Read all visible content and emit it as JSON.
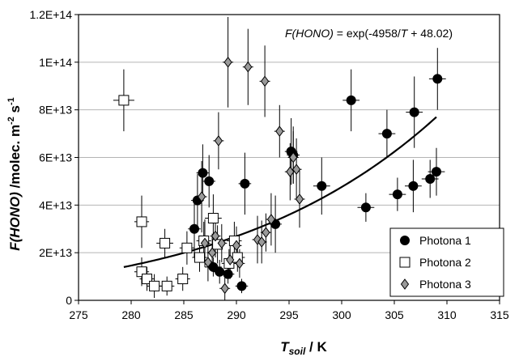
{
  "chart_data": {
    "type": "scatter",
    "xlabel_main": "T",
    "xlabel_sub": "soil",
    "xlabel_unit": " / K",
    "ylabel_main": "F(HONO)",
    "ylabel_unit_text": " /molec. m",
    "ylabel_exp1": "-2",
    "ylabel_mid": " s",
    "ylabel_exp2": "-1",
    "equation_lhs": "F(HONO)",
    "equation_rhs_pre": " = exp(-4958/",
    "equation_var": "T",
    "equation_rhs_post": " + 48.02)",
    "xlim": [
      275,
      315
    ],
    "ylim": [
      0,
      120000000000000.0
    ],
    "xticks": [
      275,
      280,
      285,
      290,
      295,
      300,
      305,
      310,
      315
    ],
    "yticks": [
      0,
      20000000000000.0,
      40000000000000.0,
      60000000000000.0,
      80000000000000.0,
      100000000000000.0,
      120000000000000.0
    ],
    "ytick_labels": [
      "0",
      "2E+13",
      "4E+13",
      "6E+13",
      "8E+13",
      "1E+14",
      "1.2E+14"
    ],
    "grid_y": true,
    "legend_position": "bottom-right",
    "fit_curve": {
      "A": -4958,
      "B": 48.02,
      "x_range": [
        279.3,
        309.0
      ]
    },
    "series": [
      {
        "name": "Photona 1",
        "marker": "circle",
        "fill": "#000000",
        "points": [
          {
            "x": 286.0,
            "y": 30000000000000.0,
            "yerr": 12000000000000.0,
            "xerr": 0.6
          },
          {
            "x": 286.3,
            "y": 42000000000000.0,
            "yerr": 11000000000000.0,
            "xerr": 0.6
          },
          {
            "x": 286.8,
            "y": 53500000000000.0,
            "yerr": 12000000000000.0,
            "xerr": 0.6
          },
          {
            "x": 287.4,
            "y": 50000000000000.0,
            "yerr": 11000000000000.0,
            "xerr": 0.6
          },
          {
            "x": 287.8,
            "y": 14000000000000.0,
            "yerr": 4000000000000.0,
            "xerr": 0.8
          },
          {
            "x": 288.4,
            "y": 12000000000000.0,
            "yerr": 5000000000000.0,
            "xerr": 0.6
          },
          {
            "x": 289.2,
            "y": 11000000000000.0,
            "yerr": 4000000000000.0,
            "xerr": 0.6
          },
          {
            "x": 290.5,
            "y": 6000000000000.0,
            "yerr": 3000000000000.0,
            "xerr": 0.6
          },
          {
            "x": 290.8,
            "y": 49000000000000.0,
            "yerr": 13000000000000.0,
            "xerr": 0.6
          },
          {
            "x": 293.7,
            "y": 32000000000000.0,
            "yerr": 12000000000000.0,
            "xerr": 0.6
          },
          {
            "x": 295.2,
            "y": 62500000000000.0,
            "yerr": 14000000000000.0,
            "xerr": 0.6
          },
          {
            "x": 295.4,
            "y": 61000000000000.0,
            "yerr": 12000000000000.0,
            "xerr": 0.6
          },
          {
            "x": 298.1,
            "y": 48000000000000.0,
            "yerr": 12000000000000.0,
            "xerr": 0.8
          },
          {
            "x": 300.9,
            "y": 84000000000000.0,
            "yerr": 13000000000000.0,
            "xerr": 0.8
          },
          {
            "x": 302.3,
            "y": 39000000000000.0,
            "yerr": 6000000000000.0,
            "xerr": 0.8
          },
          {
            "x": 304.3,
            "y": 70000000000000.0,
            "yerr": 10000000000000.0,
            "xerr": 0.8
          },
          {
            "x": 305.3,
            "y": 44500000000000.0,
            "yerr": 7000000000000.0,
            "xerr": 0.8
          },
          {
            "x": 306.8,
            "y": 48000000000000.0,
            "yerr": 11000000000000.0,
            "xerr": 0.8
          },
          {
            "x": 306.9,
            "y": 79000000000000.0,
            "yerr": 15000000000000.0,
            "xerr": 0.8
          },
          {
            "x": 308.4,
            "y": 51000000000000.0,
            "yerr": 8000000000000.0,
            "xerr": 0.8
          },
          {
            "x": 309.0,
            "y": 54000000000000.0,
            "yerr": 10000000000000.0,
            "xerr": 0.8
          },
          {
            "x": 309.1,
            "y": 93000000000000.0,
            "yerr": 13000000000000.0,
            "xerr": 0.8
          }
        ]
      },
      {
        "name": "Photona 2",
        "marker": "square",
        "fill": "#ffffff",
        "points": [
          {
            "x": 279.3,
            "y": 84000000000000.0,
            "yerr": 13000000000000.0,
            "xerr": 1.0
          },
          {
            "x": 281.0,
            "y": 33000000000000.0,
            "yerr": 11000000000000.0,
            "xerr": 0.7
          },
          {
            "x": 281.0,
            "y": 12000000000000.0,
            "yerr": 6000000000000.0,
            "xerr": 0.7
          },
          {
            "x": 281.5,
            "y": 9000000000000.0,
            "yerr": 5000000000000.0,
            "xerr": 0.7
          },
          {
            "x": 282.2,
            "y": 6000000000000.0,
            "yerr": 5000000000000.0,
            "xerr": 0.7
          },
          {
            "x": 283.2,
            "y": 24000000000000.0,
            "yerr": 6000000000000.0,
            "xerr": 0.8
          },
          {
            "x": 283.4,
            "y": 6000000000000.0,
            "yerr": 4000000000000.0,
            "xerr": 0.7
          },
          {
            "x": 284.9,
            "y": 9000000000000.0,
            "yerr": 5000000000000.0,
            "xerr": 0.7
          },
          {
            "x": 285.3,
            "y": 22000000000000.0,
            "yerr": 7000000000000.0,
            "xerr": 0.7
          },
          {
            "x": 286.5,
            "y": 18000000000000.0,
            "yerr": 6000000000000.0,
            "xerr": 0.7
          },
          {
            "x": 286.9,
            "y": 25000000000000.0,
            "yerr": 8000000000000.0,
            "xerr": 0.7
          },
          {
            "x": 287.8,
            "y": 34500000000000.0,
            "yerr": 10000000000000.0,
            "xerr": 0.8
          },
          {
            "x": 288.2,
            "y": 23500000000000.0,
            "yerr": 8000000000000.0,
            "xerr": 0.7
          },
          {
            "x": 289.3,
            "y": 15500000000000.0,
            "yerr": 6000000000000.0,
            "xerr": 0.7
          },
          {
            "x": 289.8,
            "y": 25000000000000.0,
            "yerr": 8000000000000.0,
            "xerr": 0.7
          },
          {
            "x": 290.1,
            "y": 18000000000000.0,
            "yerr": 6000000000000.0,
            "xerr": 0.7
          }
        ]
      },
      {
        "name": "Photona 3",
        "marker": "diamond",
        "fill": "#9a9a9a",
        "points": [
          {
            "x": 286.7,
            "y": 43500000000000.0,
            "yerr": 15000000000000.0,
            "xerr": 0.5
          },
          {
            "x": 287.0,
            "y": 24000000000000.0,
            "yerr": 10000000000000.0,
            "xerr": 0.5
          },
          {
            "x": 287.3,
            "y": 16000000000000.0,
            "yerr": 8000000000000.0,
            "xerr": 0.5
          },
          {
            "x": 287.7,
            "y": 20000000000000.0,
            "yerr": 8000000000000.0,
            "xerr": 0.5
          },
          {
            "x": 288.0,
            "y": 27000000000000.0,
            "yerr": 9000000000000.0,
            "xerr": 0.5
          },
          {
            "x": 288.3,
            "y": 67000000000000.0,
            "yerr": 12000000000000.0,
            "xerr": 0.5
          },
          {
            "x": 288.6,
            "y": 24000000000000.0,
            "yerr": 8000000000000.0,
            "xerr": 0.5
          },
          {
            "x": 288.9,
            "y": 5000000000000.0,
            "yerr": 6000000000000.0,
            "xerr": 0.5
          },
          {
            "x": 289.2,
            "y": 100000000000000.0,
            "yerr": 19000000000000.0,
            "xerr": 0.5
          },
          {
            "x": 289.4,
            "y": 17000000000000.0,
            "yerr": 8000000000000.0,
            "xerr": 0.5
          },
          {
            "x": 290.0,
            "y": 23000000000000.0,
            "yerr": 8000000000000.0,
            "xerr": 0.5
          },
          {
            "x": 290.3,
            "y": 15500000000000.0,
            "yerr": 6000000000000.0,
            "xerr": 0.5
          },
          {
            "x": 291.1,
            "y": 98000000000000.0,
            "yerr": 16000000000000.0,
            "xerr": 0.5
          },
          {
            "x": 292.0,
            "y": 25500000000000.0,
            "yerr": 10000000000000.0,
            "xerr": 0.5
          },
          {
            "x": 292.4,
            "y": 24500000000000.0,
            "yerr": 9000000000000.0,
            "xerr": 0.5
          },
          {
            "x": 292.7,
            "y": 92000000000000.0,
            "yerr": 15000000000000.0,
            "xerr": 0.5
          },
          {
            "x": 292.8,
            "y": 28500000000000.0,
            "yerr": 8000000000000.0,
            "xerr": 0.5
          },
          {
            "x": 293.3,
            "y": 34000000000000.0,
            "yerr": 11000000000000.0,
            "xerr": 0.5
          },
          {
            "x": 294.1,
            "y": 71000000000000.0,
            "yerr": 11000000000000.0,
            "xerr": 0.5
          },
          {
            "x": 295.1,
            "y": 54000000000000.0,
            "yerr": 12000000000000.0,
            "xerr": 0.5
          },
          {
            "x": 295.4,
            "y": 60000000000000.0,
            "yerr": 11000000000000.0,
            "xerr": 0.5
          },
          {
            "x": 295.7,
            "y": 55000000000000.0,
            "yerr": 13000000000000.0,
            "xerr": 0.5
          },
          {
            "x": 296.0,
            "y": 42500000000000.0,
            "yerr": 12000000000000.0,
            "xerr": 0.5
          }
        ]
      }
    ]
  }
}
